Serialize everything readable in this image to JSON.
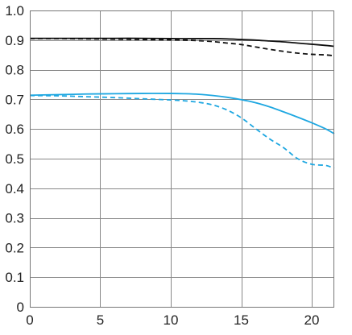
{
  "chart_data": {
    "type": "line",
    "title": "",
    "xlabel": "",
    "ylabel": "",
    "xlim": [
      0,
      21.6
    ],
    "ylim": [
      0,
      1.0
    ],
    "x_ticks": [
      "0",
      "5",
      "10",
      "15",
      "20"
    ],
    "x_tick_values": [
      0,
      5,
      10,
      15,
      20
    ],
    "y_ticks": [
      "0",
      "0.1",
      "0.2",
      "0.3",
      "0.4",
      "0.5",
      "0.6",
      "0.7",
      "0.8",
      "0.9",
      "1.0"
    ],
    "y_tick_values": [
      0,
      0.1,
      0.2,
      0.3,
      0.4,
      0.5,
      0.6,
      0.7,
      0.8,
      0.9,
      1.0
    ],
    "grid": true,
    "legend": "none",
    "series": [
      {
        "color": "#111111",
        "dash": "solid",
        "x": [
          0,
          2,
          4,
          6,
          8,
          10,
          12,
          13,
          14,
          15,
          16,
          17,
          18,
          19,
          20,
          21,
          21.6
        ],
        "y": [
          0.906,
          0.906,
          0.906,
          0.906,
          0.906,
          0.905,
          0.905,
          0.905,
          0.904,
          0.902,
          0.9,
          0.897,
          0.894,
          0.89,
          0.886,
          0.882,
          0.879
        ]
      },
      {
        "color": "#111111",
        "dash": "dashed",
        "x": [
          0,
          2,
          4,
          6,
          8,
          10,
          11,
          12,
          13,
          14,
          15,
          16,
          17,
          18,
          19,
          20,
          21,
          21.6
        ],
        "y": [
          0.905,
          0.905,
          0.904,
          0.903,
          0.902,
          0.901,
          0.9,
          0.898,
          0.895,
          0.89,
          0.885,
          0.877,
          0.869,
          0.862,
          0.856,
          0.852,
          0.85,
          0.847
        ]
      },
      {
        "color": "#1ea7e1",
        "dash": "solid",
        "x": [
          0,
          2,
          4,
          6,
          8,
          10,
          11,
          12,
          13,
          14,
          15,
          16,
          17,
          18,
          19,
          20,
          21,
          21.6
        ],
        "y": [
          0.714,
          0.716,
          0.718,
          0.719,
          0.72,
          0.72,
          0.719,
          0.717,
          0.713,
          0.707,
          0.699,
          0.689,
          0.675,
          0.658,
          0.64,
          0.621,
          0.6,
          0.584
        ]
      },
      {
        "color": "#1ea7e1",
        "dash": "dashed",
        "x": [
          0,
          2,
          4,
          6,
          8,
          10,
          11,
          12,
          13,
          14,
          15,
          16,
          17,
          18,
          19,
          20,
          21,
          21.6
        ],
        "y": [
          0.713,
          0.712,
          0.709,
          0.706,
          0.702,
          0.698,
          0.695,
          0.69,
          0.681,
          0.664,
          0.638,
          0.602,
          0.567,
          0.537,
          0.5,
          0.481,
          0.477,
          0.467
        ]
      }
    ]
  }
}
